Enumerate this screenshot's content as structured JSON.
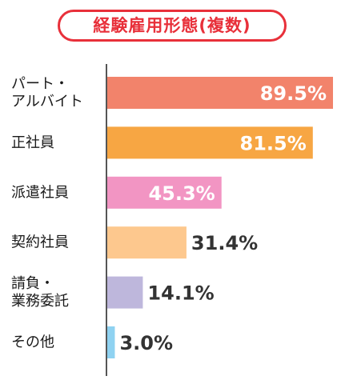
{
  "chart_data": {
    "type": "bar",
    "orientation": "horizontal",
    "title": "経験雇用形態(複数)",
    "categories": [
      [
        "パート・",
        "アルバイト"
      ],
      [
        "正社員"
      ],
      [
        "派遣社員"
      ],
      [
        "契約社員"
      ],
      [
        "請負・",
        "業務委託"
      ],
      [
        "その他"
      ]
    ],
    "values": [
      89.5,
      81.5,
      45.3,
      31.4,
      14.1,
      3.0
    ],
    "value_labels": [
      "89.5%",
      "81.5%",
      "45.3%",
      "31.4%",
      "14.1%",
      "3.0%"
    ],
    "colors": [
      "#f2836b",
      "#f7a643",
      "#f295c3",
      "#fdc88e",
      "#beb7dc",
      "#8fd2f1"
    ],
    "label_inside": [
      true,
      true,
      true,
      false,
      false,
      false
    ],
    "label_colors": [
      "#ffffff",
      "#ffffff",
      "#ffffff",
      "#333333",
      "#333333",
      "#333333"
    ],
    "xlim": [
      0,
      89.5
    ],
    "grid": false,
    "legend": "none",
    "title_color": "#e8303a"
  }
}
